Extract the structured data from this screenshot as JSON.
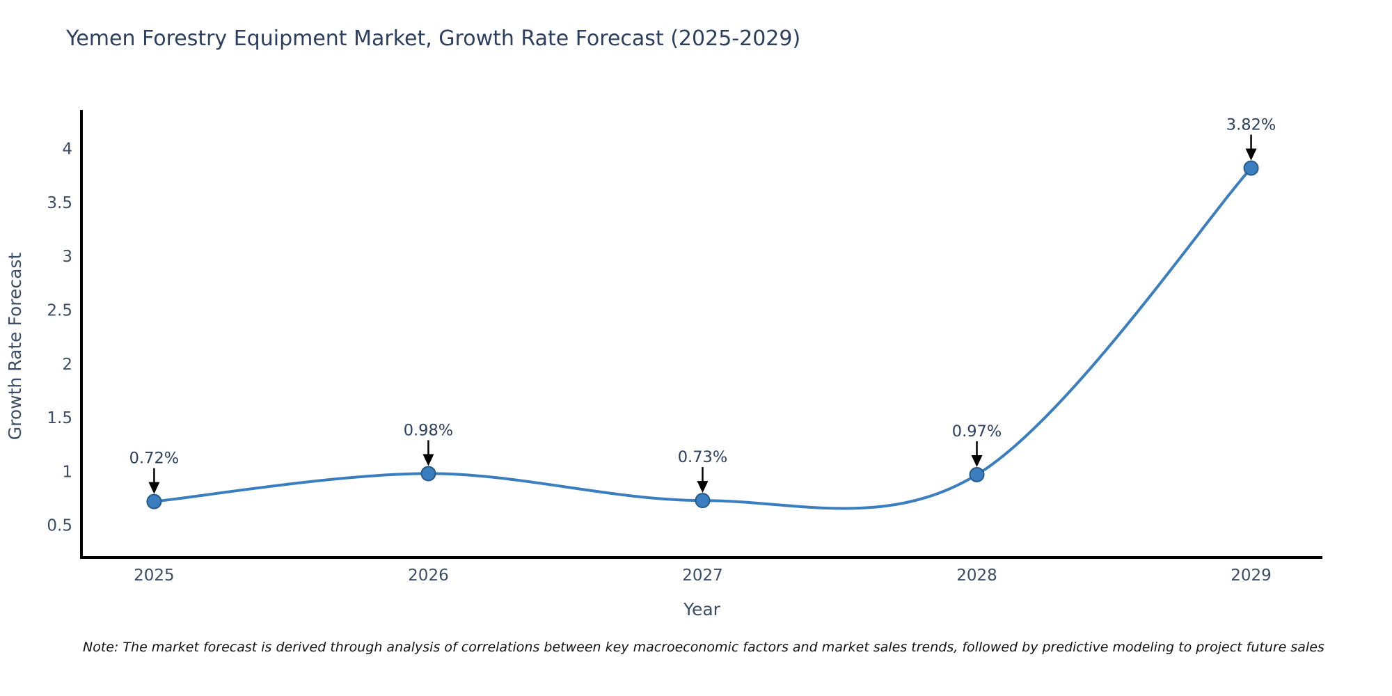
{
  "note": "Note: The market forecast is derived through analysis of correlations between key macroeconomic factors and market sales trends, followed by predictive modeling to project future sales",
  "chart_data": {
    "type": "line",
    "title": "Yemen Forestry Equipment Market, Growth Rate Forecast (2025-2029)",
    "xlabel": "Year",
    "ylabel": "Growth Rate Forecast",
    "x": [
      2025,
      2026,
      2027,
      2028,
      2029
    ],
    "y": [
      0.72,
      0.98,
      0.73,
      0.97,
      3.82
    ],
    "point_labels": [
      "0.72%",
      "0.98%",
      "0.73%",
      "0.97%",
      "3.82%"
    ],
    "series_name": "Growth Rate Forecast",
    "line_shape": "spline",
    "grid": false,
    "legend": "none",
    "xlim": [
      2024.735,
      2029.26
    ],
    "ylim": [
      0.2,
      4.36
    ],
    "xtick_values": [
      2025,
      2026,
      2027,
      2028,
      2029
    ],
    "xtick_labels": [
      "2025",
      "2026",
      "2027",
      "2028",
      "2029"
    ],
    "ytick_values": [
      0.5,
      1,
      1.5,
      2,
      2.5,
      3,
      3.5,
      4
    ],
    "ytick_labels": [
      "0.5",
      "1",
      "1.5",
      "2",
      "2.5",
      "3",
      "3.5",
      "4"
    ],
    "colors": {
      "line": "#3a7ebf",
      "marker": "#3a7ebf",
      "marker_edge": "#265a87",
      "axis": "#000000",
      "tick_text": "#3c4d63",
      "title_text": "#2d3f5e",
      "annotation_text": "#2d3f5e",
      "annotation_arrow": "#000000",
      "note_text": "#121212"
    }
  }
}
